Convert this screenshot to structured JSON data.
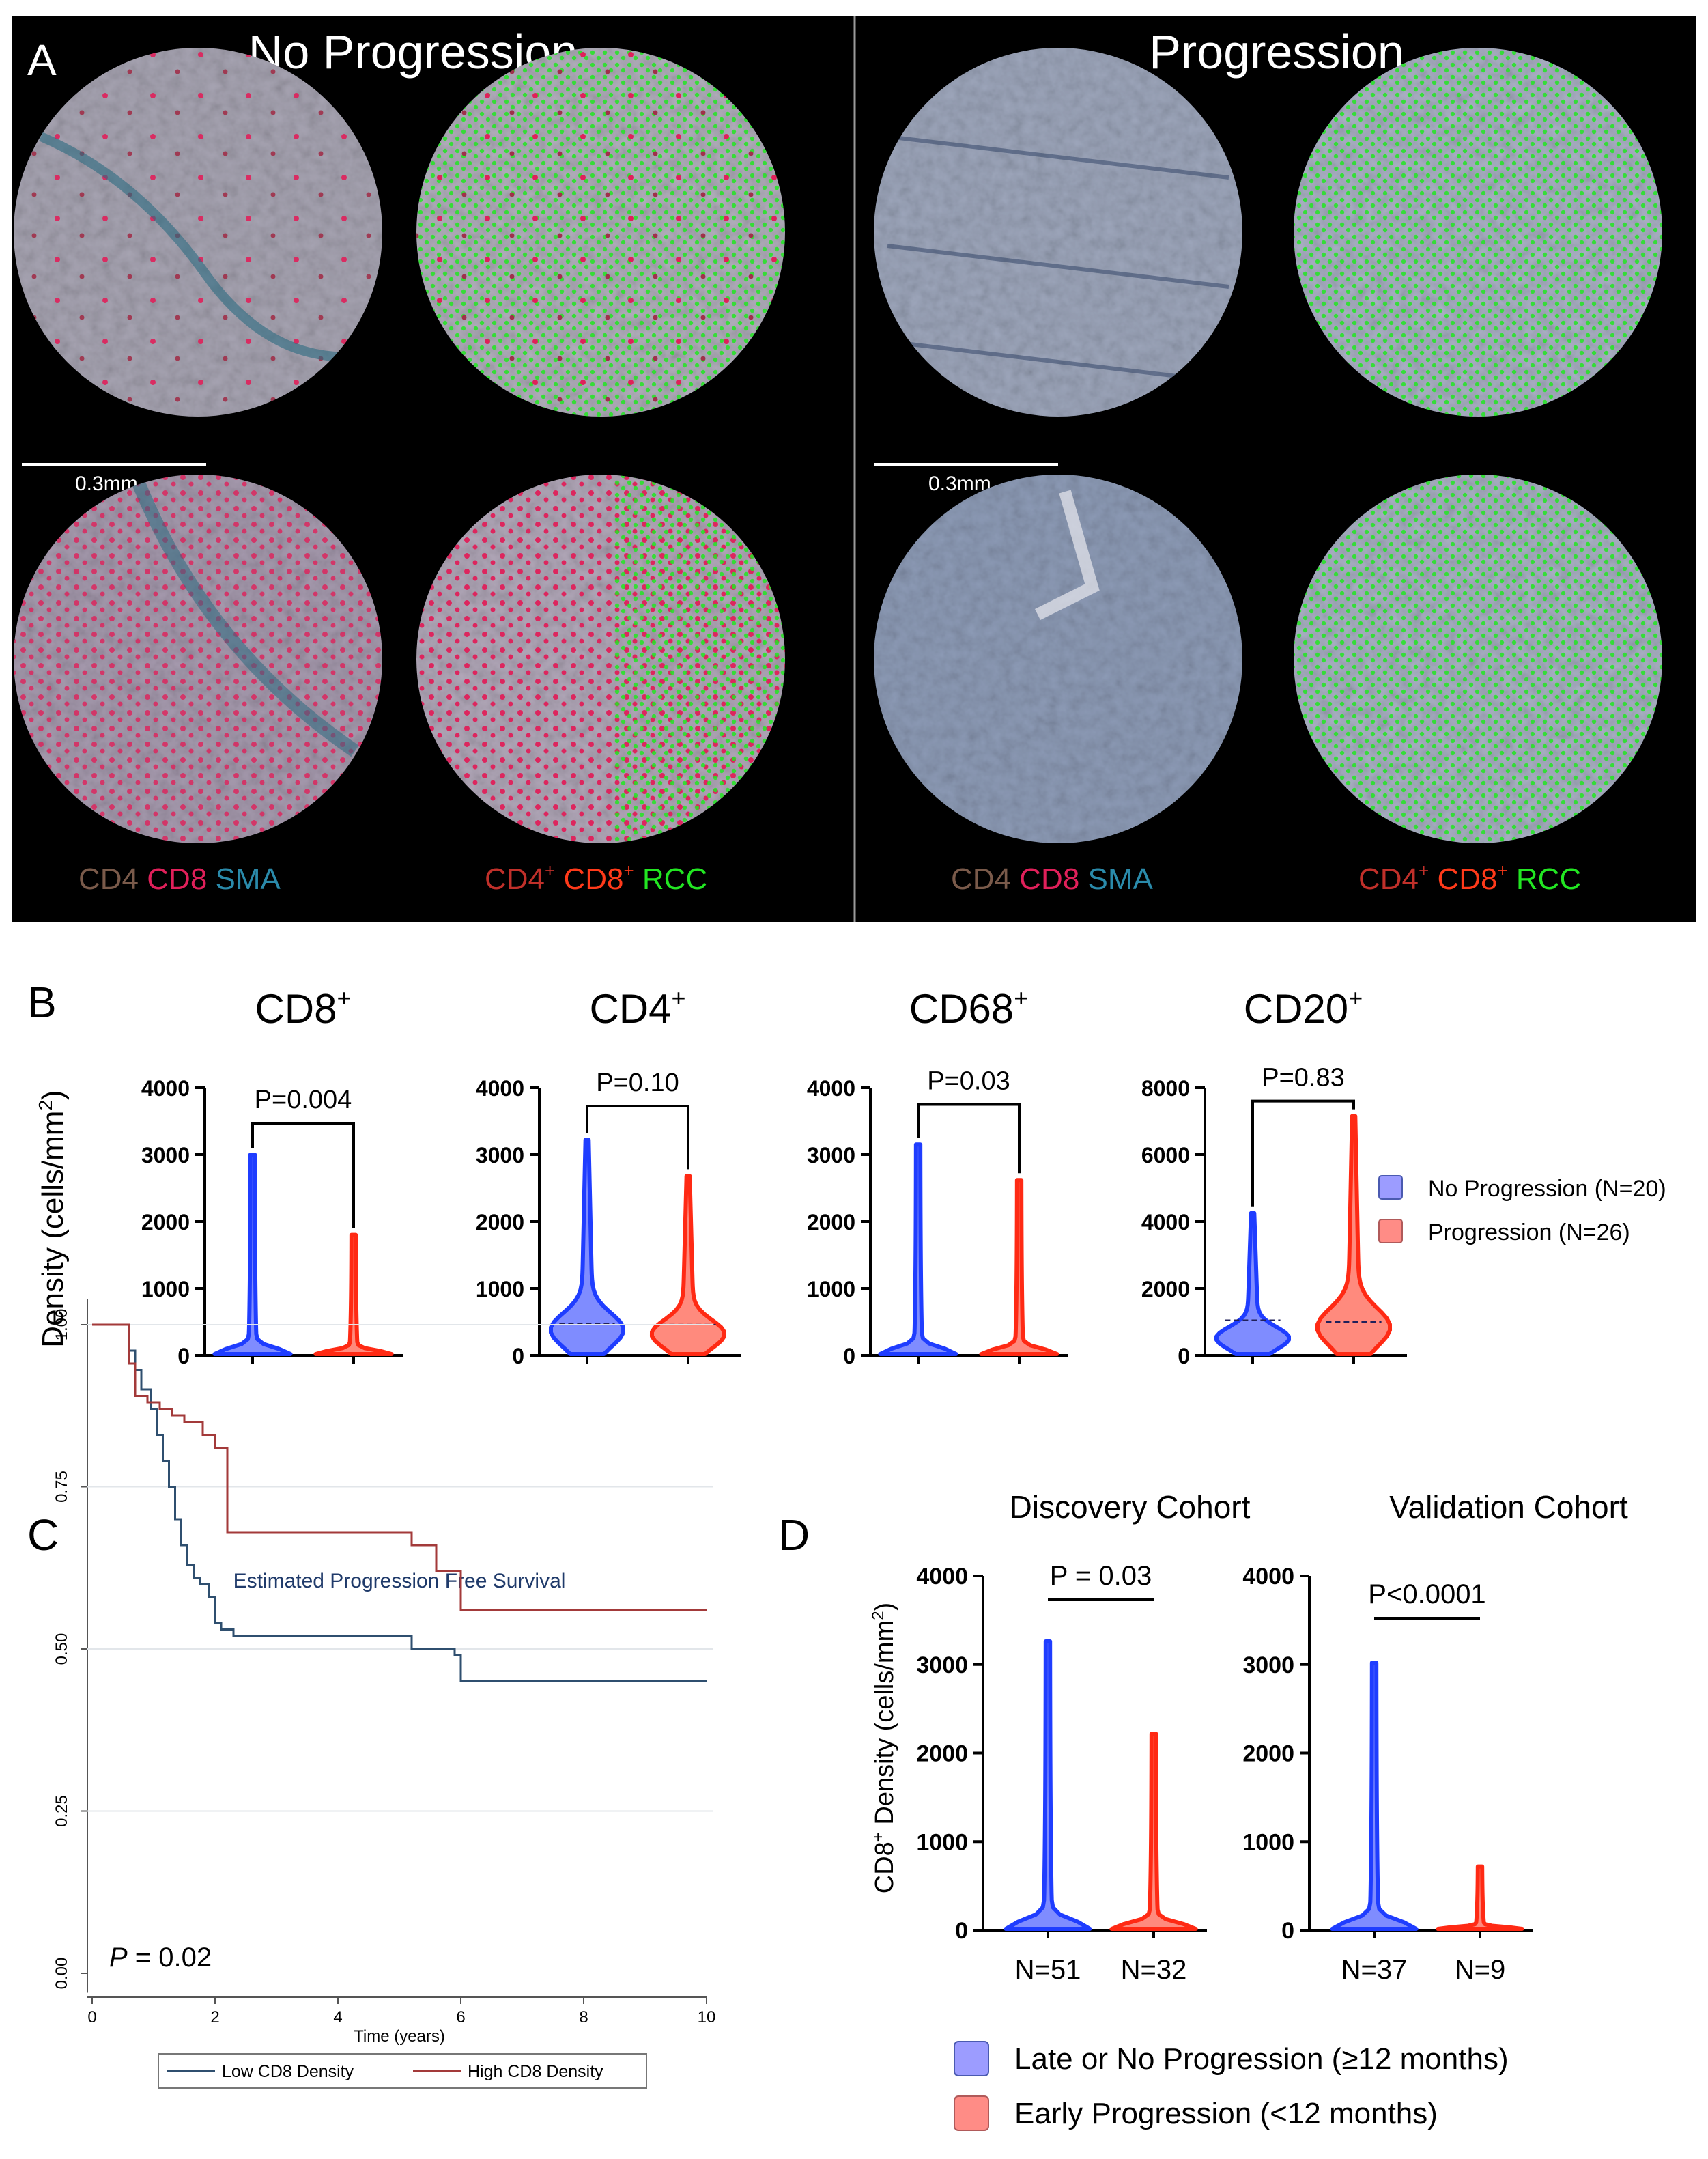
{
  "colors": {
    "blue": "#1f3dff",
    "blue_fill": "#7f8cff",
    "red": "#ff2a14",
    "red_fill": "#ff8a7d",
    "legend_blue": "#9c9cff",
    "legend_red": "#ff8c86",
    "km_low": "#2f4f6f",
    "km_high": "#a33a3a",
    "green": "#22e622",
    "magenta": "#e0205a",
    "brown": "#7a5a4a",
    "teal": "#2a8aaa"
  },
  "panelA": {
    "label": "A",
    "left_title": "No Progression",
    "right_title": "Progression",
    "scalebar_left": "0.3mm",
    "scalebar_right": "0.3mm",
    "stain_labels": [
      {
        "a": "CD4",
        "b": "CD8",
        "c": "SMA"
      },
      {
        "a": "CD4",
        "a_sup": "+",
        "b": "CD8",
        "b_sup": "+",
        "c": "RCC"
      },
      {
        "a": "CD4",
        "b": "CD8",
        "c": "SMA"
      },
      {
        "a": "CD4",
        "a_sup": "+",
        "b": "CD8",
        "b_sup": "+",
        "c": "RCC"
      }
    ]
  },
  "panelB": {
    "label": "B",
    "ylabel": "Density (cells/mm",
    "ylabel_sup": "2",
    "ylabel_close": ")",
    "legend": [
      "No Progression (N=20)",
      "Progression (N=26)"
    ]
  },
  "panelC": {
    "label": "C",
    "p_label": "P",
    "p_value": " = 0.02"
  },
  "panelD": {
    "label": "D",
    "ylabel": "CD8",
    "ylabel_sup": "+",
    "ylabel_rest": " Density (cells/mm",
    "ylabel_sup2": "2",
    "ylabel_close": ")",
    "legend": [
      "Late or No Progression (≥12 months)",
      "Early Progression (<12 months)"
    ]
  },
  "chart_data": [
    {
      "type": "violin",
      "id": "B_CD8",
      "title": "CD8",
      "title_sup": "+",
      "ylim": [
        0,
        4000
      ],
      "yticks": [
        0,
        1000,
        2000,
        3000,
        4000
      ],
      "tick_labels": [
        "0",
        "1000",
        "2000",
        "3000",
        "4000"
      ],
      "groups": [
        "No Progression",
        "Progression"
      ],
      "max": [
        3000,
        1800
      ],
      "p_label": "P=0.004"
    },
    {
      "type": "violin",
      "id": "B_CD4",
      "title": "CD4",
      "title_sup": "+",
      "ylim": [
        0,
        4000
      ],
      "yticks": [
        0,
        1000,
        2000,
        3000,
        4000
      ],
      "tick_labels": [
        "0",
        "1000",
        "2000",
        "3000",
        "4000"
      ],
      "groups": [
        "No Progression",
        "Progression"
      ],
      "max": [
        3220,
        2680
      ],
      "median": [
        480,
        460
      ],
      "p_label": "P=0.10"
    },
    {
      "type": "violin",
      "id": "B_CD68",
      "title": "CD68",
      "title_sup": "+",
      "ylim": [
        0,
        4000
      ],
      "yticks": [
        0,
        1000,
        2000,
        3000,
        4000
      ],
      "tick_labels": [
        "0",
        "1000",
        "2000",
        "3000",
        "4000"
      ],
      "groups": [
        "No Progression",
        "Progression"
      ],
      "max": [
        3150,
        2620
      ],
      "p_label": "P=0.03"
    },
    {
      "type": "violin",
      "id": "B_CD20",
      "title": "CD20",
      "title_sup": "+",
      "ylim": [
        0,
        8000
      ],
      "yticks": [
        0,
        2000,
        4000,
        6000,
        8000
      ],
      "tick_labels": [
        "0",
        "2000",
        "4000",
        "6000",
        "8000"
      ],
      "groups": [
        "No Progression",
        "Progression"
      ],
      "max": [
        4250,
        7150
      ],
      "median": [
        1050,
        1000
      ],
      "p_label": "P=0.83"
    },
    {
      "type": "line",
      "id": "C_KM",
      "title": "Estimated Progression Free Survival",
      "xlabel": "Time (years)",
      "xlim": [
        0,
        10
      ],
      "ylim": [
        0,
        1
      ],
      "xticks": [
        0,
        2,
        4,
        6,
        8,
        10
      ],
      "xtick_labels": [
        "0",
        "2",
        "4",
        "6",
        "8",
        "10"
      ],
      "yticks": [
        0,
        0.25,
        0.5,
        0.75,
        1
      ],
      "ytick_labels": [
        "0.00",
        "0.25",
        "0.50",
        "0.75",
        "1.00"
      ],
      "legend": [
        "Low CD8 Density",
        "High CD8 Density"
      ],
      "series": [
        {
          "name": "Low CD8 Density",
          "x": [
            0,
            0.5,
            0.6,
            0.7,
            0.8,
            0.95,
            1.05,
            1.15,
            1.25,
            1.35,
            1.45,
            1.55,
            1.65,
            1.75,
            1.9,
            2.0,
            2.1,
            2.3,
            5.2,
            5.9,
            6.0,
            10
          ],
          "y": [
            1.0,
            1.0,
            0.96,
            0.93,
            0.9,
            0.87,
            0.83,
            0.79,
            0.75,
            0.7,
            0.66,
            0.63,
            0.61,
            0.6,
            0.58,
            0.54,
            0.53,
            0.52,
            0.5,
            0.49,
            0.45,
            0.45
          ]
        },
        {
          "name": "High CD8 Density",
          "x": [
            0,
            0.5,
            0.6,
            0.7,
            0.9,
            1.1,
            1.3,
            1.5,
            1.8,
            2.0,
            2.2,
            5.2,
            5.6,
            6.0,
            10
          ],
          "y": [
            1.0,
            1.0,
            0.94,
            0.89,
            0.88,
            0.87,
            0.86,
            0.85,
            0.83,
            0.81,
            0.68,
            0.66,
            0.62,
            0.56,
            0.56
          ]
        }
      ]
    },
    {
      "type": "violin",
      "id": "D_Discovery",
      "title": "Discovery Cohort",
      "ylim": [
        0,
        4000
      ],
      "yticks": [
        0,
        1000,
        2000,
        3000,
        4000
      ],
      "tick_labels": [
        "0",
        "1000",
        "2000",
        "3000",
        "4000"
      ],
      "categories": [
        "N=51",
        "N=32"
      ],
      "max": [
        3260,
        2220
      ],
      "p_label": "P = 0.03"
    },
    {
      "type": "violin",
      "id": "D_Validation",
      "title": "Validation Cohort",
      "ylim": [
        0,
        4000
      ],
      "yticks": [
        0,
        1000,
        2000,
        3000,
        4000
      ],
      "tick_labels": [
        "0",
        "1000",
        "2000",
        "3000",
        "4000"
      ],
      "categories": [
        "N=37",
        "N=9"
      ],
      "max": [
        3020,
        720
      ],
      "p_label": "P<0.0001"
    }
  ]
}
